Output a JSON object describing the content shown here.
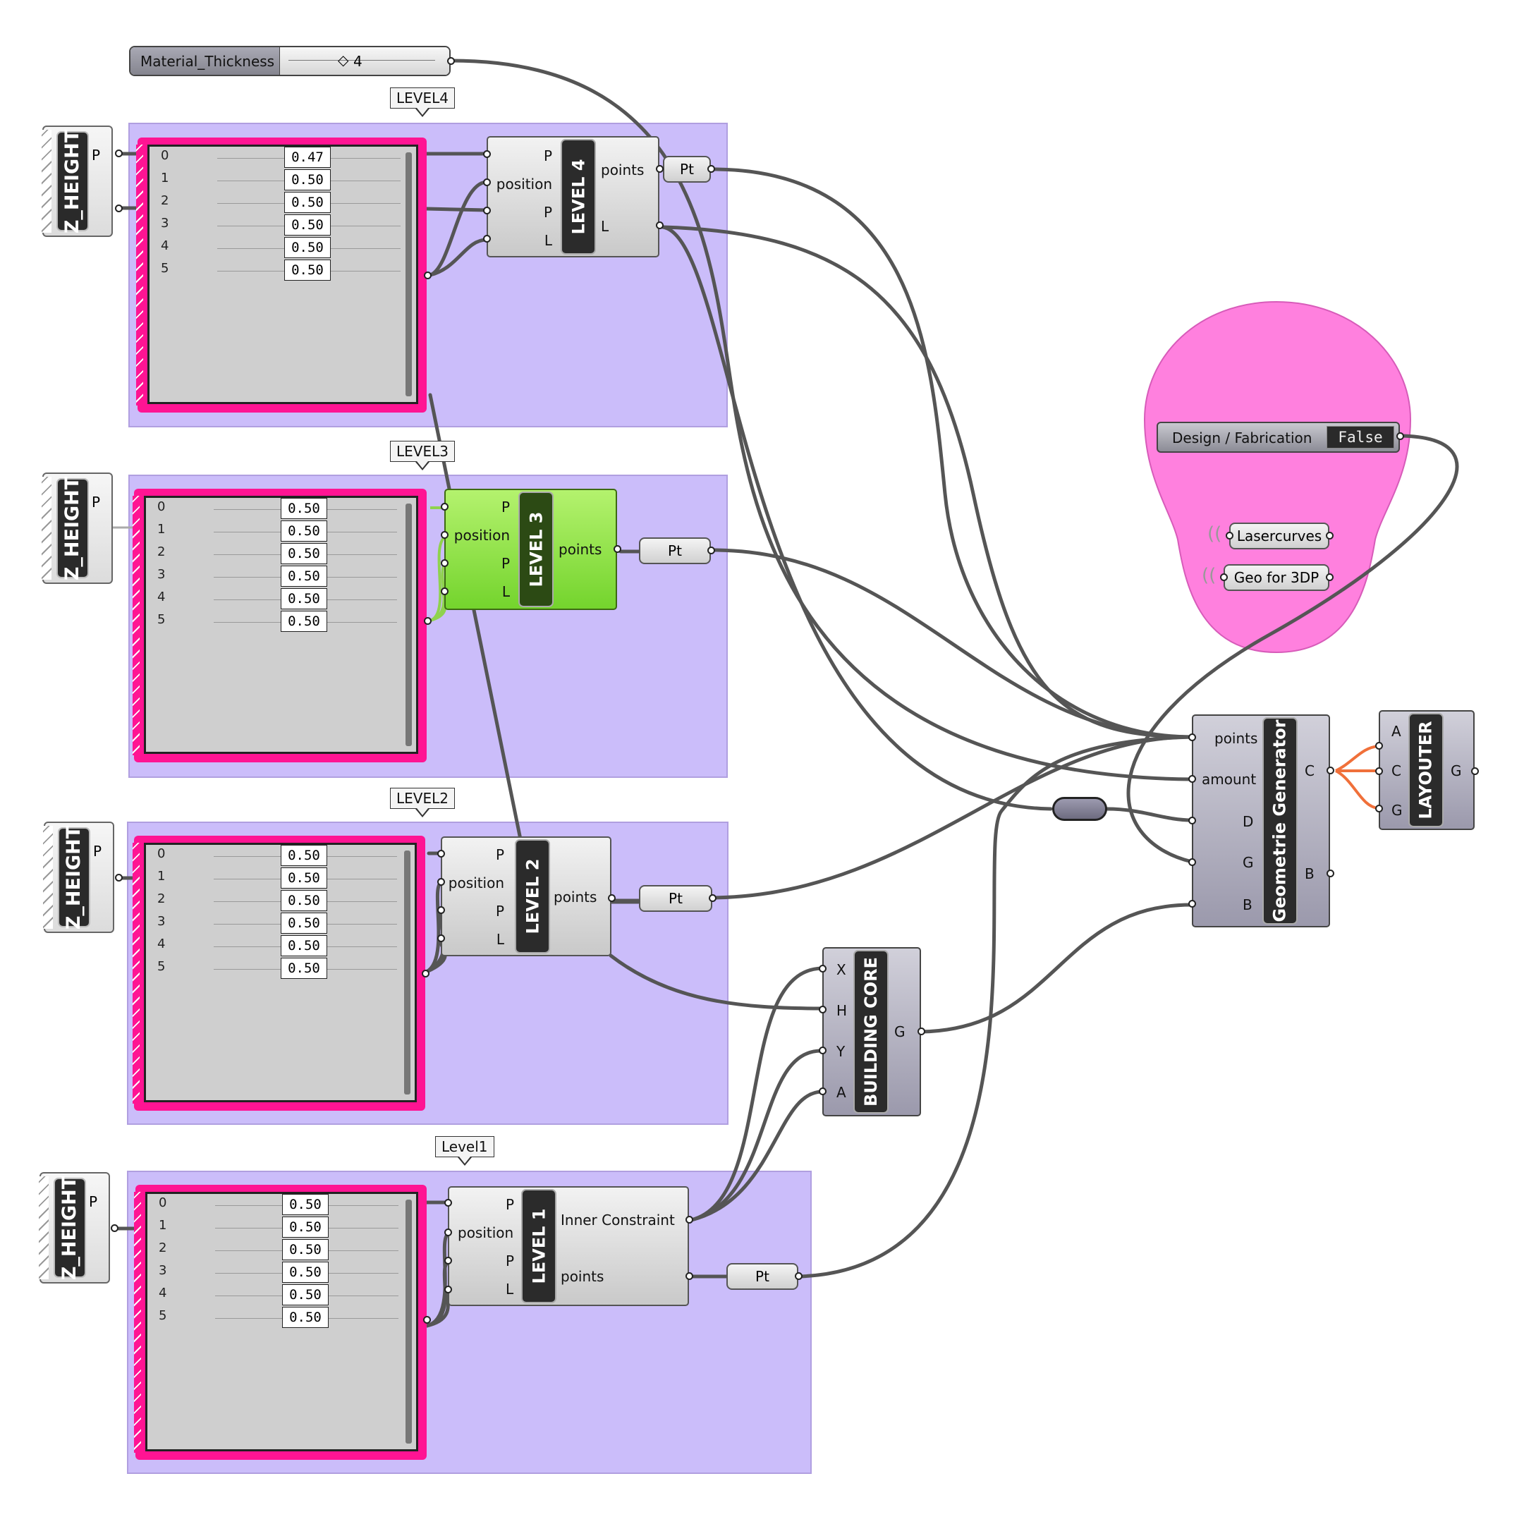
{
  "slider": {
    "name": "Material_Thickness",
    "value": "4"
  },
  "group_labels": {
    "level4": "LEVEL4",
    "level3": "LEVEL3",
    "level2": "LEVEL2",
    "level1": "Level1"
  },
  "z_height": {
    "name": "Z_HEIGHT",
    "output": "P"
  },
  "panels": {
    "level4": [
      {
        "i": "0",
        "v": "0.47"
      },
      {
        "i": "1",
        "v": "0.50"
      },
      {
        "i": "2",
        "v": "0.50"
      },
      {
        "i": "3",
        "v": "0.50"
      },
      {
        "i": "4",
        "v": "0.50"
      },
      {
        "i": "5",
        "v": "0.50"
      }
    ],
    "level3": [
      {
        "i": "0",
        "v": "0.50"
      },
      {
        "i": "1",
        "v": "0.50"
      },
      {
        "i": "2",
        "v": "0.50"
      },
      {
        "i": "3",
        "v": "0.50"
      },
      {
        "i": "4",
        "v": "0.50"
      },
      {
        "i": "5",
        "v": "0.50"
      }
    ],
    "level2": [
      {
        "i": "0",
        "v": "0.50"
      },
      {
        "i": "1",
        "v": "0.50"
      },
      {
        "i": "2",
        "v": "0.50"
      },
      {
        "i": "3",
        "v": "0.50"
      },
      {
        "i": "4",
        "v": "0.50"
      },
      {
        "i": "5",
        "v": "0.50"
      }
    ],
    "level1": [
      {
        "i": "0",
        "v": "0.50"
      },
      {
        "i": "1",
        "v": "0.50"
      },
      {
        "i": "2",
        "v": "0.50"
      },
      {
        "i": "3",
        "v": "0.50"
      },
      {
        "i": "4",
        "v": "0.50"
      },
      {
        "i": "5",
        "v": "0.50"
      }
    ]
  },
  "level4": {
    "name": "LEVEL 4",
    "inputs": [
      "P",
      "position",
      "P",
      "L"
    ],
    "outputs": [
      "points",
      "L"
    ]
  },
  "level3": {
    "name": "LEVEL 3",
    "inputs": [
      "P",
      "position",
      "P",
      "L"
    ],
    "outputs": [
      "points"
    ]
  },
  "level2": {
    "name": "LEVEL 2",
    "inputs": [
      "P",
      "position",
      "P",
      "L"
    ],
    "outputs": [
      "points"
    ]
  },
  "level1": {
    "name": "LEVEL 1",
    "inputs": [
      "P",
      "position",
      "P",
      "L"
    ],
    "outputs": [
      "Inner Constraint",
      "points"
    ]
  },
  "pt_label": "Pt",
  "building_core": {
    "name": "BUILDING CORE",
    "inputs": [
      "X",
      "H",
      "Y",
      "A"
    ],
    "output": "G"
  },
  "geometrie": {
    "name": "Geometrie Generator",
    "inputs": [
      "points",
      "amount",
      "D",
      "G",
      "B"
    ],
    "outputs": [
      "C",
      "B"
    ]
  },
  "layouter": {
    "name": "LAYOUTER",
    "inputs": [
      "A",
      "C",
      "G"
    ],
    "output": "G"
  },
  "toggle": {
    "label": "Design / Fabrication",
    "value": "False"
  },
  "outputs": {
    "laser": "Lasercurves",
    "geo3dp": "Geo for 3DP"
  },
  "colors": {
    "group": "#cbbdfa",
    "panel": "#ff1493",
    "blob": "#ff80de",
    "green": "#8ee04a",
    "wire": "#555555",
    "orange_wire": "#f0703a"
  }
}
